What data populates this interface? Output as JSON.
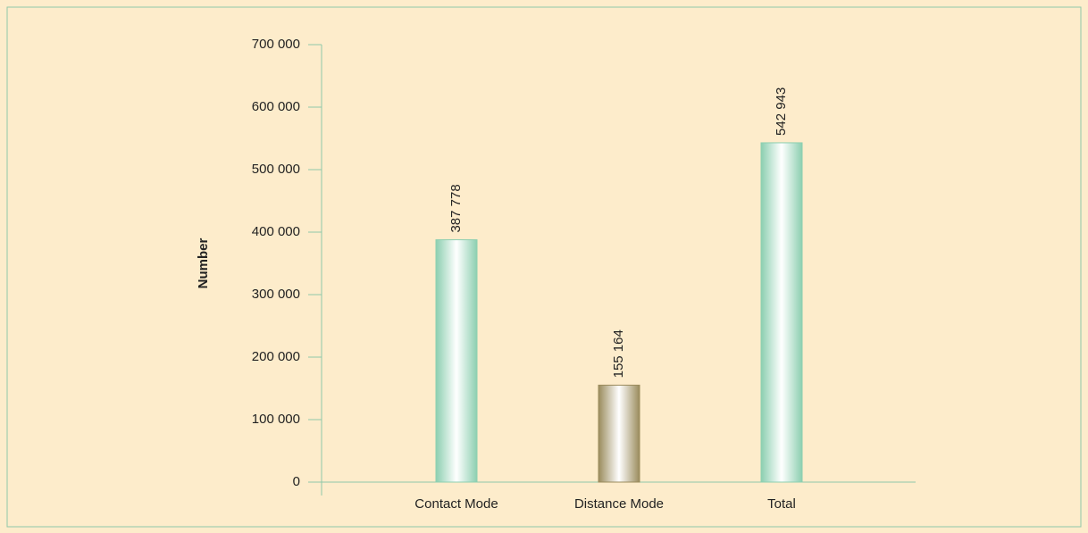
{
  "chart_data": {
    "type": "bar",
    "y_label": "Number",
    "categories": [
      "Contact Mode",
      "Distance Mode",
      "Total"
    ],
    "values": [
      387778,
      155164,
      542943
    ],
    "value_labels": [
      "387 778",
      "155 164",
      "542 943"
    ],
    "colors": [
      "#8ccfb0",
      "#9a8b5c",
      "#8ccfb0"
    ],
    "ylim": [
      0,
      700000
    ],
    "yticks": [
      {
        "value": 0,
        "label": "0"
      },
      {
        "value": 100000,
        "label": "100 000"
      },
      {
        "value": 200000,
        "label": "200 000"
      },
      {
        "value": 300000,
        "label": "300 000"
      },
      {
        "value": 400000,
        "label": "400 000"
      },
      {
        "value": 500000,
        "label": "500 000"
      },
      {
        "value": 600000,
        "label": "600 000"
      },
      {
        "value": 700000,
        "label": "700 000"
      }
    ],
    "grid": false
  }
}
